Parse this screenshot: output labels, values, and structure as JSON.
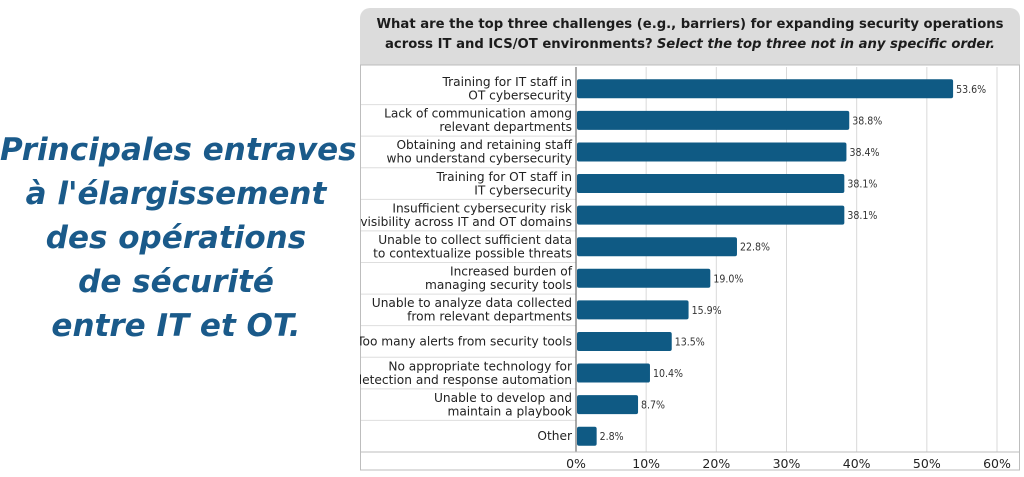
{
  "side_title": {
    "lines": [
      "Principales entraves",
      "à l'élargissement",
      "des opérations",
      "de sécurité",
      "entre IT et OT."
    ]
  },
  "header": {
    "question": "What are the top three challenges (e.g., barriers) for expanding security operations across IT and ICS/OT environments?",
    "instruction": "Select the top three not in any specific order."
  },
  "colors": {
    "bar": "#0f5a84",
    "side_title": "#1a5a8a",
    "header_bg": "#dcdcdc",
    "gridline": "#d9d9d9"
  },
  "chart_data": {
    "type": "bar",
    "orientation": "horizontal",
    "categories": [
      [
        "Training for IT staff in",
        "OT cybersecurity"
      ],
      [
        "Lack of communication among",
        "relevant departments"
      ],
      [
        "Obtaining and retaining staff",
        "who understand cybersecurity"
      ],
      [
        "Training for OT staff in",
        "IT cybersecurity"
      ],
      [
        "Insufficient cybersecurity risk",
        "visibility across IT and OT domains"
      ],
      [
        "Unable to collect sufficient data",
        "to contextualize possible threats"
      ],
      [
        "Increased burden of",
        "managing security tools"
      ],
      [
        "Unable to analyze data collected",
        "from relevant departments"
      ],
      [
        "Too many alerts from security tools"
      ],
      [
        "No appropriate technology for",
        "detection and response automation"
      ],
      [
        "Unable to develop and",
        "maintain a playbook"
      ],
      [
        "Other"
      ]
    ],
    "values": [
      53.6,
      38.8,
      38.4,
      38.1,
      38.1,
      22.8,
      19.0,
      15.9,
      13.5,
      10.4,
      8.7,
      2.8
    ],
    "value_labels": [
      "53.6%",
      "38.8%",
      "38.4%",
      "38.1%",
      "38.1%",
      "22.8%",
      "19.0%",
      "15.9%",
      "13.5%",
      "10.4%",
      "8.7%",
      "2.8%"
    ],
    "xlim": [
      0,
      60
    ],
    "xticks": [
      0,
      10,
      20,
      30,
      40,
      50,
      60
    ],
    "xtick_labels": [
      "0%",
      "10%",
      "20%",
      "30%",
      "40%",
      "50%",
      "60%"
    ],
    "grid": true
  }
}
